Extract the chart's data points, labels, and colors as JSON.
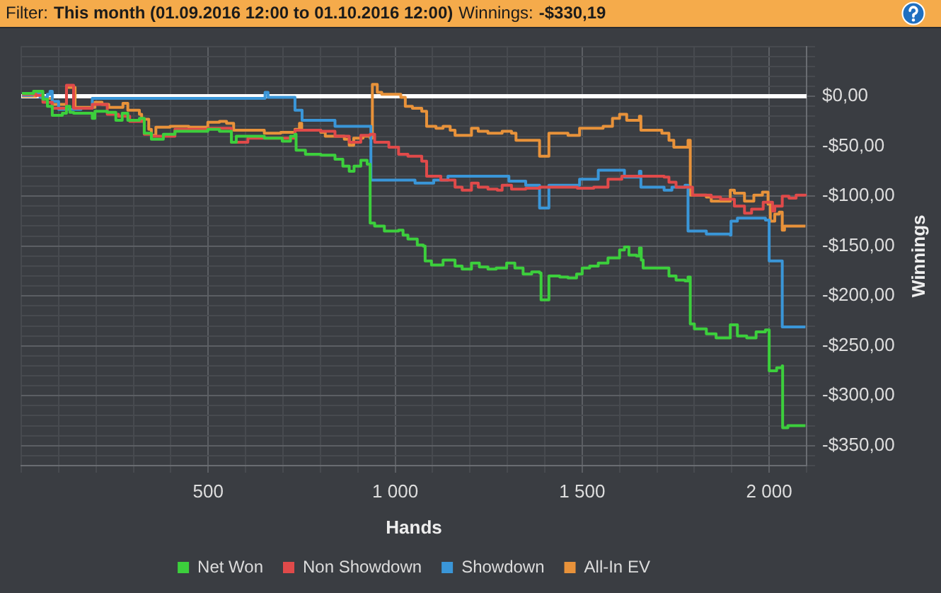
{
  "chart_data": {
    "type": "step",
    "annotations": [
      "Filter:",
      "This month (01.09.2016 12:00 to 01.10.2016 12:00)",
      "Winnings:",
      "-$330,19"
    ],
    "xlabel": "Hands",
    "ylabel": "Winnings",
    "xlim": [
      0,
      2100
    ],
    "ylim": [
      -370,
      50
    ],
    "xticks": [
      {
        "value": 0,
        "label": null
      },
      {
        "value": 100,
        "label": null
      },
      {
        "value": 200,
        "label": null
      },
      {
        "value": 300,
        "label": null
      },
      {
        "value": 400,
        "label": null
      },
      500,
      {
        "value": 600,
        "label": null
      },
      {
        "value": 700,
        "label": null
      },
      {
        "value": 800,
        "label": null
      },
      {
        "value": 900,
        "label": null
      },
      {
        "value": 1000,
        "label": "1 000"
      },
      {
        "value": 1100,
        "label": null
      },
      {
        "value": 1200,
        "label": null
      },
      {
        "value": 1300,
        "label": null
      },
      {
        "value": 1400,
        "label": null
      },
      {
        "value": 1500,
        "label": "1 500"
      },
      {
        "value": 1600,
        "label": null
      },
      {
        "value": 1700,
        "label": null
      },
      {
        "value": 1800,
        "label": null
      },
      {
        "value": 1900,
        "label": null
      },
      {
        "value": 2000,
        "label": "2 000"
      },
      {
        "value": 2100,
        "label": null
      }
    ],
    "yticks": [
      {
        "value": 50,
        "label": null
      },
      {
        "value": 40,
        "label": null
      },
      {
        "value": 30,
        "label": null
      },
      {
        "value": 20,
        "label": null
      },
      {
        "value": 10,
        "label": null
      },
      {
        "value": 0,
        "label": "$0,00"
      },
      {
        "value": -10,
        "label": null
      },
      {
        "value": -20,
        "label": null
      },
      {
        "value": -30,
        "label": null
      },
      {
        "value": -40,
        "label": null
      },
      {
        "value": -50,
        "label": "-$50,00"
      },
      {
        "value": -60,
        "label": null
      },
      {
        "value": -70,
        "label": null
      },
      {
        "value": -80,
        "label": null
      },
      {
        "value": -90,
        "label": null
      },
      {
        "value": -100,
        "label": "-$100,00"
      },
      {
        "value": -110,
        "label": null
      },
      {
        "value": -120,
        "label": null
      },
      {
        "value": -130,
        "label": null
      },
      {
        "value": -140,
        "label": null
      },
      {
        "value": -150,
        "label": "-$150,00"
      },
      {
        "value": -160,
        "label": null
      },
      {
        "value": -170,
        "label": null
      },
      {
        "value": -180,
        "label": null
      },
      {
        "value": -190,
        "label": null
      },
      {
        "value": -200,
        "label": "-$200,00"
      },
      {
        "value": -210,
        "label": null
      },
      {
        "value": -220,
        "label": null
      },
      {
        "value": -230,
        "label": null
      },
      {
        "value": -240,
        "label": null
      },
      {
        "value": -250,
        "label": "-$250,00"
      },
      {
        "value": -260,
        "label": null
      },
      {
        "value": -270,
        "label": null
      },
      {
        "value": -280,
        "label": null
      },
      {
        "value": -290,
        "label": null
      },
      {
        "value": -300,
        "label": "-$300,00"
      },
      {
        "value": -310,
        "label": null
      },
      {
        "value": -320,
        "label": null
      },
      {
        "value": -330,
        "label": null
      },
      {
        "value": -340,
        "label": null
      },
      {
        "value": -350,
        "label": "-$350,00"
      },
      {
        "value": -360,
        "label": null
      },
      {
        "value": -370,
        "label": null
      }
    ],
    "grid": true,
    "legend": "bottom",
    "ref_lines": [
      {
        "axis": "y",
        "value": 0,
        "color": "#ffffff"
      }
    ],
    "series": [
      {
        "name": "Net Won",
        "color": "#3ccf3c",
        "x": [
          2,
          33,
          58,
          70,
          83,
          110,
          121,
          130,
          140,
          190,
          197,
          230,
          253,
          270,
          285,
          316,
          329,
          348,
          380,
          411,
          470,
          499,
          530,
          562,
          575,
          606,
          650,
          698,
          720,
          732,
          735,
          760,
          801,
          839,
          860,
          877,
          890,
          908,
          925,
          933,
          945,
          971,
          1009,
          1021,
          1034,
          1059,
          1075,
          1080,
          1097,
          1128,
          1160,
          1179,
          1204,
          1225,
          1248,
          1270,
          1298,
          1320,
          1342,
          1365,
          1386,
          1390,
          1411,
          1440,
          1462,
          1485,
          1500,
          1520,
          1543,
          1569,
          1600,
          1613,
          1625,
          1645,
          1653,
          1658,
          1663,
          1707,
          1732,
          1751,
          1775,
          1783,
          1789,
          1800,
          1832,
          1858,
          1885,
          1896,
          1915,
          1940,
          1965,
          1990,
          2000,
          2020,
          2035,
          2036,
          2050,
          2097
        ],
        "values": [
          3,
          5,
          -3,
          -10,
          -19,
          -17,
          -10,
          -16,
          -17,
          -22,
          -15,
          -16,
          -24,
          -17,
          -24,
          -22,
          -37,
          -43,
          -38,
          -35,
          -35,
          -33,
          -35,
          -46,
          -40,
          -40,
          -42,
          -45,
          -40,
          -38,
          -54,
          -58,
          -59,
          -63,
          -70,
          -75,
          -70,
          -64,
          -68,
          -127,
          -130,
          -135,
          -134,
          -139,
          -143,
          -149,
          -150,
          -165,
          -169,
          -164,
          -170,
          -173,
          -167,
          -171,
          -173,
          -172,
          -167,
          -172,
          -178,
          -176,
          -177,
          -204,
          -180,
          -181,
          -182,
          -178,
          -172,
          -170,
          -167,
          -162,
          -154,
          -151,
          -159,
          -160,
          -152,
          -164,
          -172,
          -172,
          -180,
          -184,
          -185,
          -181,
          -228,
          -233,
          -238,
          -242,
          -242,
          -229,
          -240,
          -242,
          -236,
          -234,
          -275,
          -272,
          -270,
          -332,
          -330,
          -330
        ]
      },
      {
        "name": "Non Showdown",
        "color": "#e04a4a",
        "x": [
          2,
          40,
          58,
          83,
          121,
          140,
          190,
          230,
          260,
          290,
          329,
          348,
          411,
          499,
          562,
          606,
          698,
          732,
          801,
          839,
          877,
          908,
          933,
          945,
          983,
          1009,
          1034,
          1071,
          1084,
          1122,
          1160,
          1179,
          1204,
          1222,
          1248,
          1273,
          1286,
          1311,
          1349,
          1386,
          1436,
          1487,
          1531,
          1569,
          1606,
          1719,
          1732,
          1751,
          1795,
          1845,
          1870,
          1907,
          1934,
          1953,
          1984,
          2009,
          2015,
          2035,
          2053,
          2072,
          2097
        ],
        "values": [
          2,
          1,
          -6,
          -12,
          11,
          -12,
          -8,
          -18,
          -20,
          -25,
          -38,
          -40,
          -33,
          -32,
          -46,
          -42,
          -42,
          -34,
          -35,
          -40,
          -46,
          -39,
          -38,
          -46,
          -51,
          -58,
          -60,
          -65,
          -80,
          -84,
          -91,
          -94,
          -87,
          -91,
          -93,
          -94,
          -89,
          -93,
          -92,
          -91,
          -91,
          -92,
          -91,
          -83,
          -80,
          -81,
          -86,
          -91,
          -99,
          -101,
          -103,
          -110,
          -117,
          -113,
          -106,
          -115,
          -110,
          -100,
          -102,
          -99,
          -100
        ]
      },
      {
        "name": "Showdown",
        "color": "#3a96d8",
        "x": [
          2,
          30,
          50,
          70,
          77,
          83,
          100,
          160,
          190,
          652,
          660,
          732,
          751,
          839,
          935,
          1053,
          1103,
          1141,
          1304,
          1349,
          1386,
          1411,
          1493,
          1543,
          1613,
          1653,
          1657,
          1719,
          1740,
          1775,
          1783,
          1832,
          1896,
          1898,
          1915,
          1980,
          1990,
          2000,
          2035,
          2097
        ],
        "values": [
          1,
          3,
          -1,
          2,
          5,
          -5,
          -13,
          -12,
          -2,
          4,
          -1,
          -14,
          -24,
          -30,
          -84,
          -87,
          -84,
          -80,
          -85,
          -89,
          -112,
          -89,
          -83,
          -74,
          -81,
          -75,
          -91,
          -94,
          -91,
          -89,
          -135,
          -138,
          -139,
          -125,
          -122,
          -122,
          -124,
          -165,
          -231,
          -231
        ]
      },
      {
        "name": "All-In EV",
        "color": "#e8923a",
        "x": [
          2,
          40,
          58,
          83,
          121,
          144,
          197,
          216,
          234,
          272,
          285,
          316,
          322,
          341,
          348,
          360,
          398,
          448,
          499,
          530,
          549,
          568,
          612,
          650,
          694,
          732,
          744,
          750,
          801,
          813,
          864,
          877,
          889,
          914,
          933,
          939,
          952,
          964,
          1015,
          1027,
          1046,
          1071,
          1084,
          1109,
          1128,
          1147,
          1160,
          1204,
          1222,
          1248,
          1286,
          1311,
          1323,
          1386,
          1411,
          1462,
          1493,
          1556,
          1581,
          1600,
          1619,
          1653,
          1657,
          1713,
          1732,
          1745,
          1783,
          1789,
          1832,
          1845,
          1896,
          1907,
          1934,
          1959,
          1982,
          1997,
          2003,
          2015,
          2027,
          2035,
          2041,
          2097
        ],
        "values": [
          0,
          2,
          -2,
          -8,
          9,
          -11,
          -6,
          -8,
          -11,
          -7,
          -14,
          -18,
          -23,
          -33,
          -39,
          -31,
          -30,
          -31,
          -26,
          -25,
          -27,
          -34,
          -34,
          -37,
          -36,
          -33,
          -27,
          -34,
          -36,
          -40,
          -43,
          -49,
          -42,
          -40,
          -42,
          12,
          4,
          2,
          -1,
          -10,
          -12,
          -15,
          -30,
          -32,
          -30,
          -34,
          -39,
          -32,
          -35,
          -37,
          -35,
          -37,
          -44,
          -60,
          -37,
          -39,
          -32,
          -30,
          -22,
          -18,
          -24,
          -20,
          -34,
          -37,
          -44,
          -51,
          -44,
          -99,
          -101,
          -105,
          -94,
          -97,
          -105,
          -99,
          -96,
          -108,
          -125,
          -118,
          -116,
          -134,
          -130,
          -130
        ]
      }
    ]
  }
}
